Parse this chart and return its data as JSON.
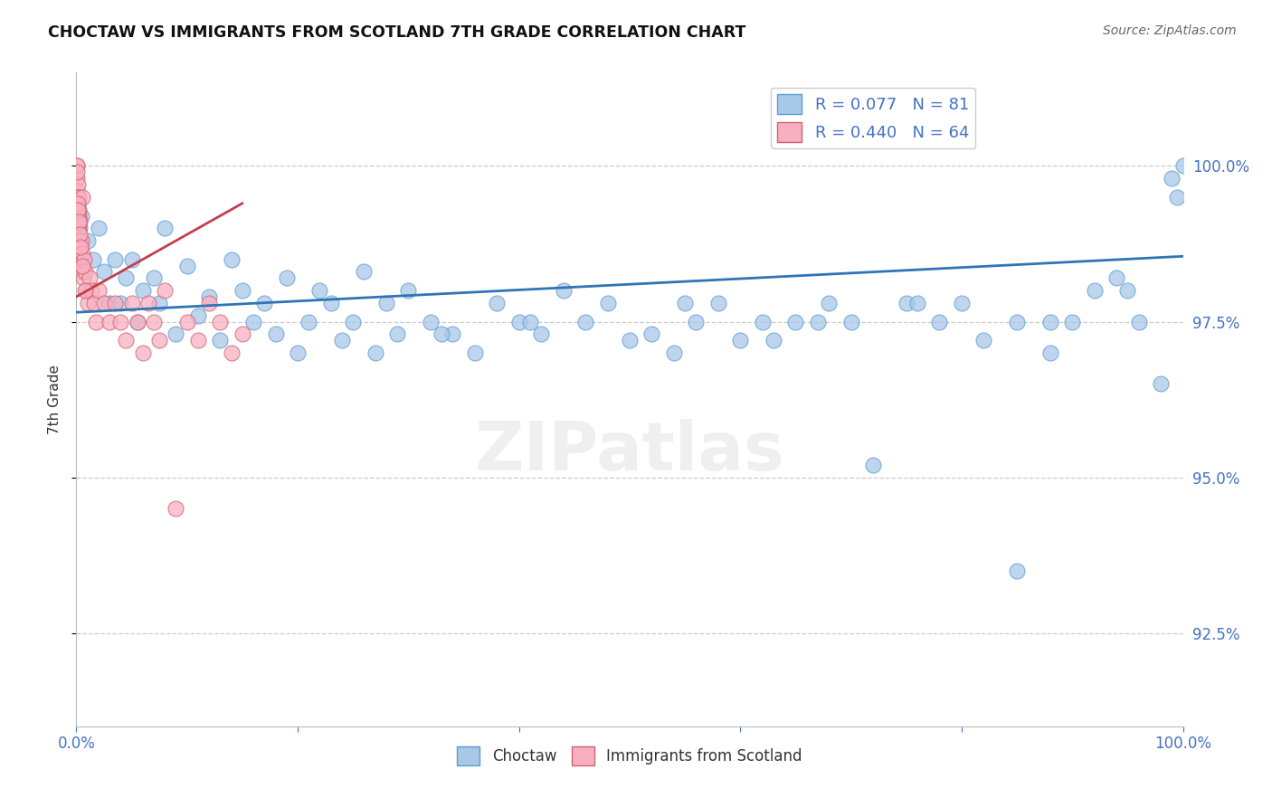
{
  "title": "CHOCTAW VS IMMIGRANTS FROM SCOTLAND 7TH GRADE CORRELATION CHART",
  "source": "Source: ZipAtlas.com",
  "ylabel": "7th Grade",
  "y_ticks": [
    92.5,
    95.0,
    97.5,
    100.0
  ],
  "xlim": [
    0.0,
    100.0
  ],
  "ylim": [
    91.0,
    101.5
  ],
  "legend_blue_label": "R = 0.077   N = 81",
  "legend_pink_label": "R = 0.440   N = 64",
  "blue_color": "#A8C8E8",
  "pink_color": "#F8B0C0",
  "blue_edge": "#5B9BD5",
  "pink_edge": "#D06070",
  "trend_blue": "#2E75B6",
  "trend_pink": "#C04050",
  "background": "#FFFFFF",
  "grid_color": "#CCCCCC",
  "blue_x": [
    0.3,
    0.5,
    1.0,
    1.5,
    2.0,
    2.5,
    3.0,
    3.5,
    4.0,
    4.5,
    5.0,
    5.5,
    6.0,
    7.0,
    7.5,
    8.0,
    9.0,
    10.0,
    11.0,
    12.0,
    13.0,
    14.0,
    15.0,
    16.0,
    17.0,
    18.0,
    19.0,
    20.0,
    21.0,
    22.0,
    23.0,
    24.0,
    25.0,
    26.0,
    27.0,
    28.0,
    29.0,
    30.0,
    32.0,
    34.0,
    36.0,
    38.0,
    40.0,
    42.0,
    44.0,
    46.0,
    48.0,
    50.0,
    52.0,
    54.0,
    56.0,
    58.0,
    60.0,
    62.0,
    65.0,
    68.0,
    70.0,
    72.0,
    75.0,
    78.0,
    80.0,
    82.0,
    85.0,
    88.0,
    90.0,
    92.0,
    94.0,
    96.0,
    98.0,
    99.0,
    99.5,
    100.0,
    55.0,
    67.0,
    85.0,
    33.0,
    41.0,
    63.0,
    76.0,
    88.0,
    95.0
  ],
  "blue_y": [
    99.0,
    99.2,
    98.8,
    98.5,
    99.0,
    98.3,
    97.8,
    98.5,
    97.8,
    98.2,
    98.5,
    97.5,
    98.0,
    98.2,
    97.8,
    99.0,
    97.3,
    98.4,
    97.6,
    97.9,
    97.2,
    98.5,
    98.0,
    97.5,
    97.8,
    97.3,
    98.2,
    97.0,
    97.5,
    98.0,
    97.8,
    97.2,
    97.5,
    98.3,
    97.0,
    97.8,
    97.3,
    98.0,
    97.5,
    97.3,
    97.0,
    97.8,
    97.5,
    97.3,
    98.0,
    97.5,
    97.8,
    97.2,
    97.3,
    97.0,
    97.5,
    97.8,
    97.2,
    97.5,
    97.5,
    97.8,
    97.5,
    95.2,
    97.8,
    97.5,
    97.8,
    97.2,
    97.5,
    97.0,
    97.5,
    98.0,
    98.2,
    97.5,
    96.5,
    99.8,
    99.5,
    100.0,
    97.8,
    97.5,
    93.5,
    97.3,
    97.5,
    97.2,
    97.8,
    97.5,
    98.0
  ],
  "pink_x": [
    0.05,
    0.07,
    0.08,
    0.09,
    0.1,
    0.11,
    0.12,
    0.13,
    0.14,
    0.15,
    0.16,
    0.17,
    0.18,
    0.19,
    0.2,
    0.22,
    0.24,
    0.26,
    0.28,
    0.3,
    0.33,
    0.36,
    0.4,
    0.44,
    0.48,
    0.52,
    0.58,
    0.65,
    0.72,
    0.8,
    0.9,
    1.0,
    1.2,
    1.4,
    1.6,
    1.8,
    2.0,
    2.5,
    3.0,
    3.5,
    4.0,
    4.5,
    5.0,
    5.5,
    6.0,
    6.5,
    7.0,
    7.5,
    8.0,
    9.0,
    10.0,
    11.0,
    12.0,
    13.0,
    14.0,
    15.0,
    0.06,
    0.1,
    0.15,
    0.21,
    0.3,
    0.42,
    0.55,
    0.75
  ],
  "pink_y": [
    100.0,
    99.8,
    100.0,
    99.6,
    99.5,
    99.3,
    99.7,
    99.2,
    99.5,
    99.4,
    99.0,
    98.8,
    99.2,
    99.0,
    99.5,
    98.8,
    99.3,
    98.6,
    99.1,
    98.8,
    98.5,
    98.7,
    98.5,
    98.8,
    98.3,
    98.6,
    99.5,
    98.2,
    98.5,
    98.3,
    98.0,
    97.8,
    98.2,
    98.0,
    97.8,
    97.5,
    98.0,
    97.8,
    97.5,
    97.8,
    97.5,
    97.2,
    97.8,
    97.5,
    97.0,
    97.8,
    97.5,
    97.2,
    98.0,
    94.5,
    97.5,
    97.2,
    97.8,
    97.5,
    97.0,
    97.3,
    99.9,
    99.4,
    99.3,
    99.1,
    98.9,
    98.7,
    98.4,
    98.0
  ],
  "trend_blue_x0": 0.0,
  "trend_blue_x1": 100.0,
  "trend_blue_y0": 97.65,
  "trend_blue_y1": 98.55,
  "trend_pink_x0": 0.0,
  "trend_pink_x1": 15.0,
  "trend_pink_y0": 97.9,
  "trend_pink_y1": 99.4
}
